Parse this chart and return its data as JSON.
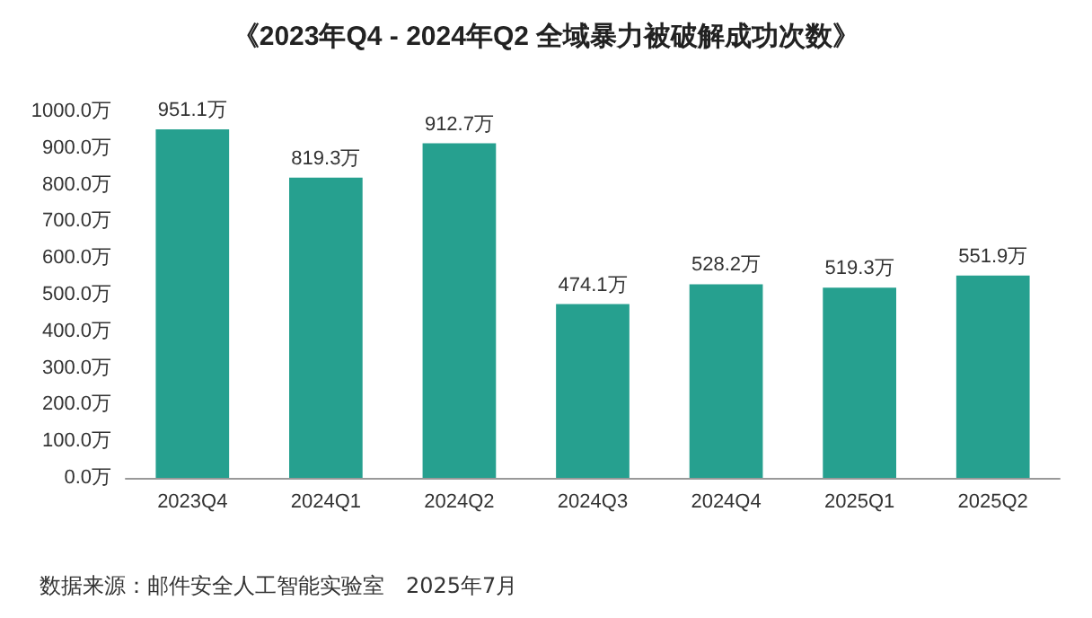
{
  "chart_data": {
    "type": "bar",
    "title": "《2023年Q4 - 2024年Q2 全域暴力被破解成功次数》",
    "categories": [
      "2023Q4",
      "2024Q1",
      "2024Q2",
      "2024Q3",
      "2024Q4",
      "2025Q1",
      "2025Q2"
    ],
    "values": [
      951.1,
      819.3,
      912.7,
      474.1,
      528.2,
      519.3,
      551.9
    ],
    "value_labels": [
      "951.1万",
      "819.3万",
      "912.7万",
      "474.1万",
      "528.2万",
      "519.3万",
      "551.9万"
    ],
    "color": "#26a08f",
    "ylim": [
      0,
      1000
    ],
    "yticks": [
      {
        "value": 0,
        "label": "0.0万"
      },
      {
        "value": 100,
        "label": "100.0万"
      },
      {
        "value": 200,
        "label": "200.0万"
      },
      {
        "value": 300,
        "label": "300.0万"
      },
      {
        "value": 400,
        "label": "400.0万"
      },
      {
        "value": 500,
        "label": "500.0万"
      },
      {
        "value": 600,
        "label": "600.0万"
      },
      {
        "value": 700,
        "label": "700.0万"
      },
      {
        "value": 800,
        "label": "800.0万"
      },
      {
        "value": 900,
        "label": "900.0万"
      },
      {
        "value": 1000,
        "label": "1000.0万"
      }
    ],
    "grid": false,
    "annotations": [
      "数据来源：邮件安全人工智能实验室　2025年7月"
    ]
  }
}
